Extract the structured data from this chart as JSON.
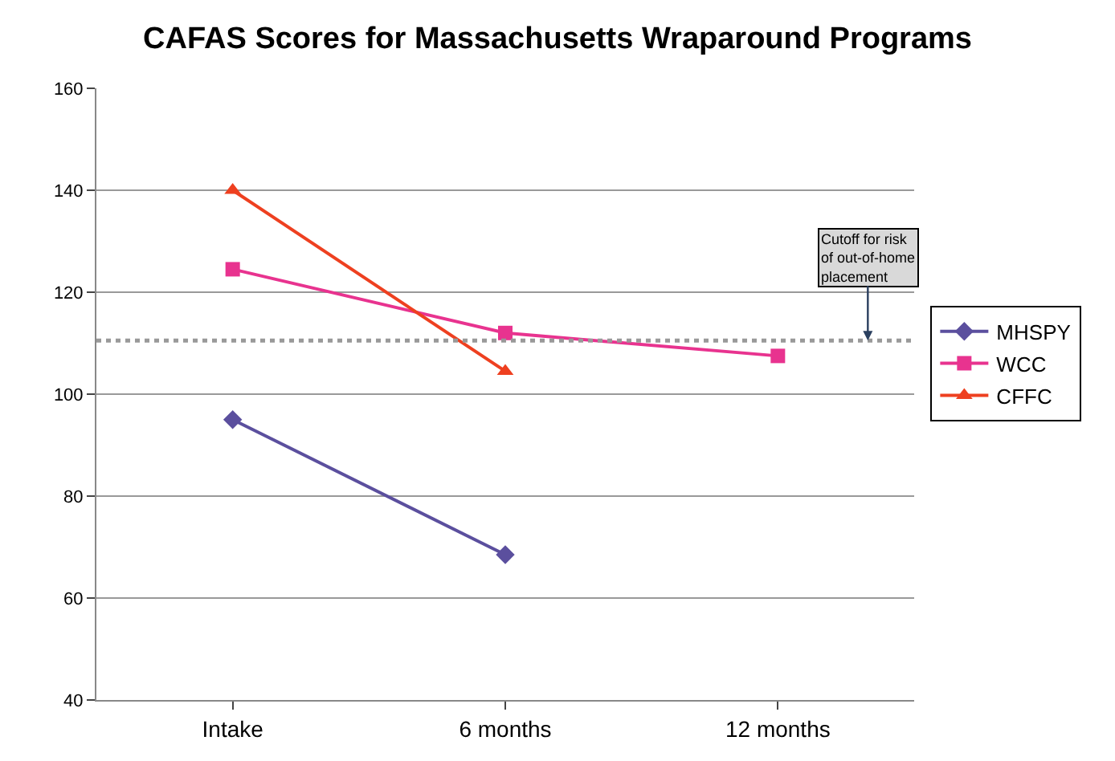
{
  "chart_data": {
    "type": "line",
    "title": "CAFAS Scores for Massachusetts Wraparound Programs",
    "categories": [
      "Intake",
      "6 months",
      "12 months"
    ],
    "series": [
      {
        "name": "MHSPY",
        "color": "#5b4f9e",
        "values": [
          95,
          68.5,
          null
        ],
        "marker": "diamond"
      },
      {
        "name": "WCC",
        "color": "#e8338f",
        "values": [
          124.5,
          112,
          107.5
        ],
        "marker": "square"
      },
      {
        "name": "CFFC",
        "color": "#ee4020",
        "values": [
          140,
          104.5,
          null
        ],
        "marker": "triangle"
      }
    ],
    "ylim": [
      40,
      160
    ],
    "yticks": [
      40,
      60,
      80,
      100,
      120,
      140,
      160
    ],
    "grid": "y",
    "legend": "right",
    "line_style": "solid",
    "ref_lines": [
      {
        "axis": "y",
        "value": 110.5,
        "color": "#999999",
        "line_style": "dotted"
      }
    ],
    "annotations": [
      {
        "text": "Cutoff for risk\nof out-of-home\nplacement",
        "y": 110.5
      }
    ]
  }
}
